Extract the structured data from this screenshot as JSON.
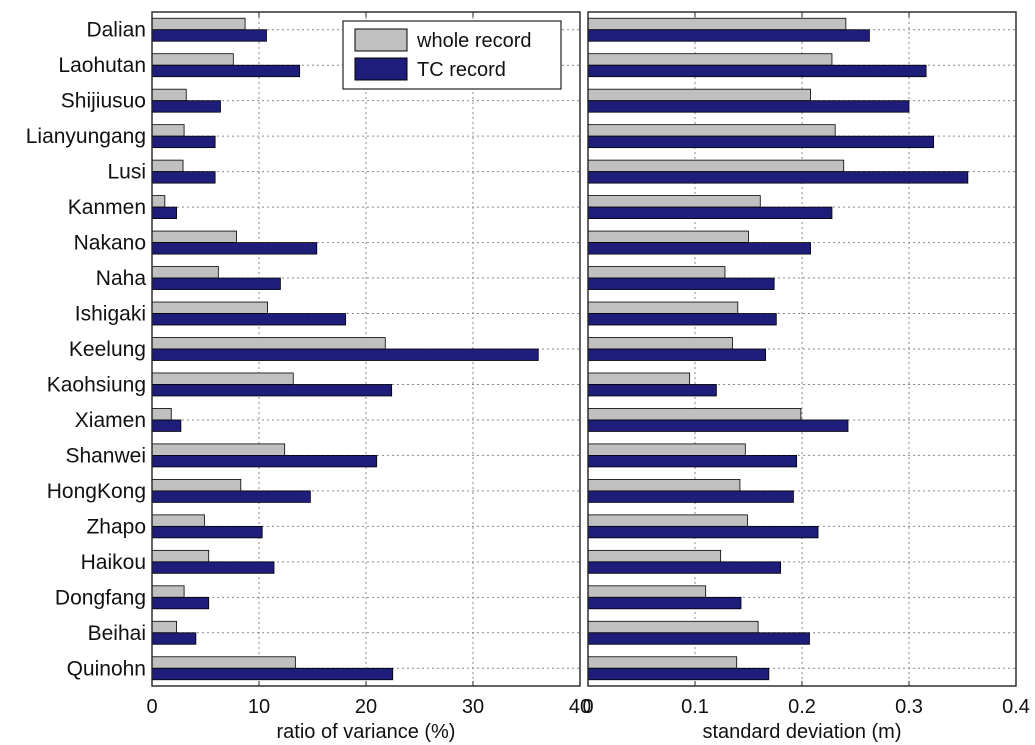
{
  "chart_data": [
    {
      "type": "bar",
      "orientation": "horizontal",
      "categories": [
        "Dalian",
        "Laohutan",
        "Shijiusuo",
        "Lianyungang",
        "Lusi",
        "Kanmen",
        "Nakano",
        "Naha",
        "Ishigaki",
        "Keelung",
        "Kaohsiung",
        "Xiamen",
        "Shanwei",
        "HongKong",
        "Zhapo",
        "Haikou",
        "Dongfang",
        "Beihai",
        "Quinohn"
      ],
      "series": [
        {
          "name": "whole record",
          "color": "#c0c0c0",
          "values": [
            8.7,
            7.6,
            3.2,
            3.0,
            2.9,
            1.2,
            7.9,
            6.2,
            10.8,
            21.8,
            13.2,
            1.8,
            12.4,
            8.3,
            4.9,
            5.3,
            3.0,
            2.3,
            13.4
          ]
        },
        {
          "name": "TC record",
          "color": "#1e1e7a",
          "values": [
            10.7,
            13.8,
            6.4,
            5.9,
            5.9,
            2.3,
            15.4,
            12.0,
            18.1,
            36.1,
            22.4,
            2.7,
            21.0,
            14.8,
            10.3,
            11.4,
            5.3,
            4.1,
            22.5
          ]
        }
      ],
      "xlabel": "ratio of variance (%)",
      "xlim": [
        0,
        40
      ],
      "xticks": [
        0,
        10,
        20,
        30,
        40
      ],
      "grid": true,
      "legend": {
        "placement": "top-right",
        "entries": [
          "whole record",
          "TC record"
        ]
      }
    },
    {
      "type": "bar",
      "orientation": "horizontal",
      "categories": [
        "Dalian",
        "Laohutan",
        "Shijiusuo",
        "Lianyungang",
        "Lusi",
        "Kanmen",
        "Nakano",
        "Naha",
        "Ishigaki",
        "Keelung",
        "Kaohsiung",
        "Xiamen",
        "Shanwei",
        "HongKong",
        "Zhapo",
        "Haikou",
        "Dongfang",
        "Beihai",
        "Quinohn"
      ],
      "series": [
        {
          "name": "whole record",
          "color": "#c0c0c0",
          "values": [
            0.241,
            0.228,
            0.208,
            0.231,
            0.239,
            0.161,
            0.15,
            0.128,
            0.14,
            0.135,
            0.095,
            0.199,
            0.147,
            0.142,
            0.149,
            0.124,
            0.11,
            0.159,
            0.139
          ]
        },
        {
          "name": "TC record",
          "color": "#1e1e7a",
          "values": [
            0.263,
            0.316,
            0.3,
            0.323,
            0.355,
            0.228,
            0.208,
            0.174,
            0.176,
            0.166,
            0.12,
            0.243,
            0.195,
            0.192,
            0.215,
            0.18,
            0.143,
            0.207,
            0.169
          ]
        }
      ],
      "xlabel": "standard deviation (m)",
      "xlim": [
        0,
        0.4
      ],
      "xticks": [
        0,
        0.1,
        0.2,
        0.3,
        0.4
      ],
      "grid": true
    }
  ]
}
